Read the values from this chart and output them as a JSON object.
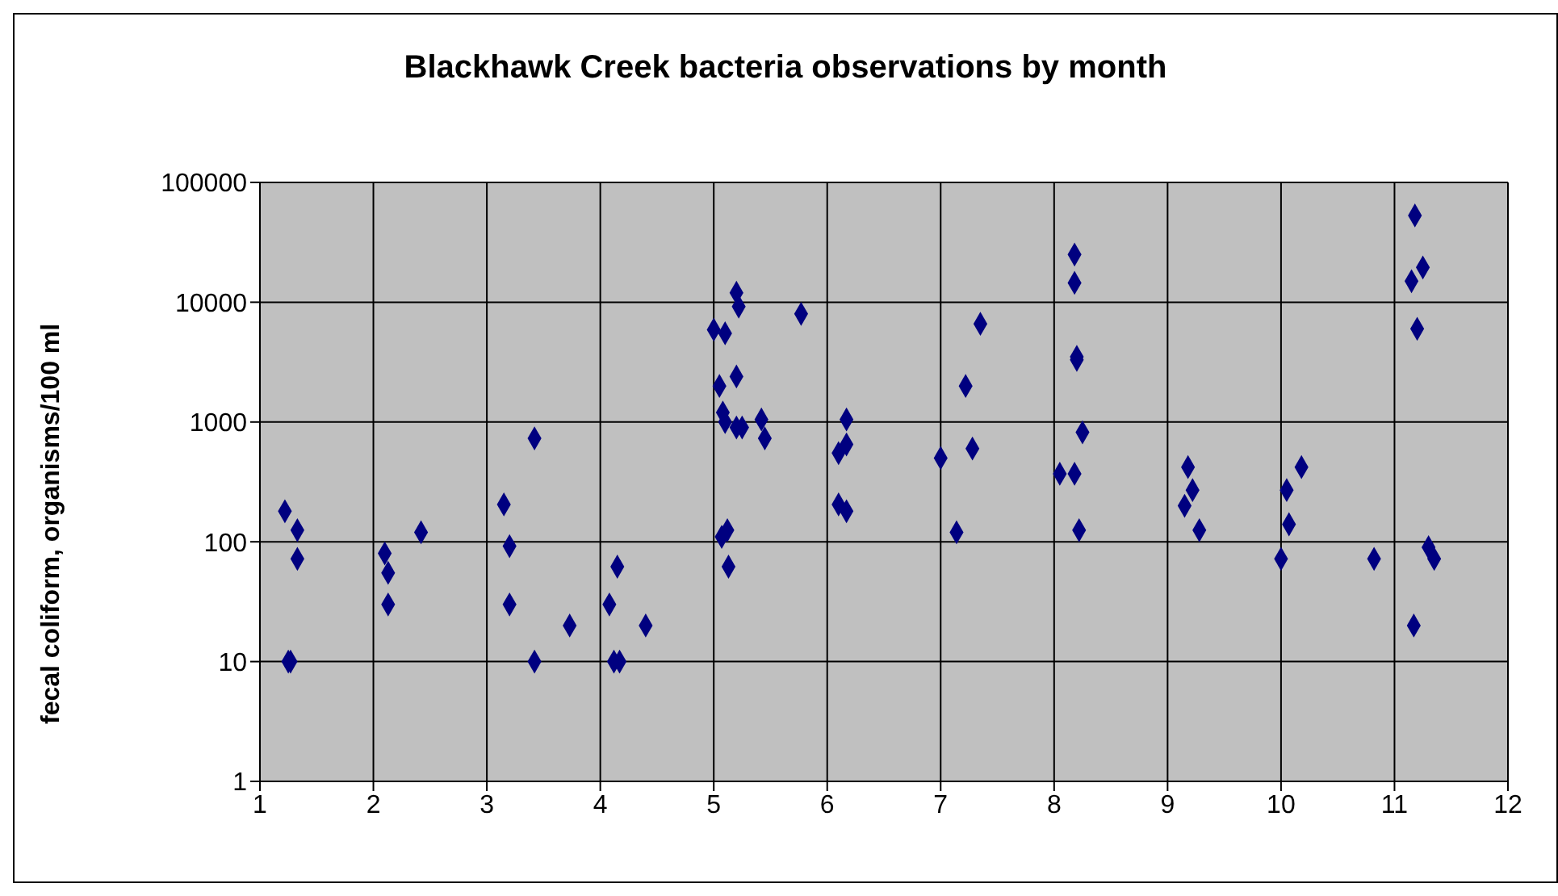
{
  "chart_data": {
    "type": "scatter",
    "title": "Blackhawk Creek bacteria observations by month",
    "ylabel": "fecal coliform, organisms/100 ml",
    "log": "y",
    "grid": true,
    "marker": "diamond",
    "xlim": [
      1,
      12
    ],
    "xticks": [
      1,
      2,
      3,
      4,
      5,
      6,
      7,
      8,
      9,
      10,
      11,
      12
    ],
    "ylim": [
      1,
      100000
    ],
    "yticks": [
      1,
      10,
      100,
      1000,
      10000,
      100000
    ],
    "series": [
      {
        "color": "#000080",
        "x": [
          1.22,
          1.25,
          1.27,
          1.33,
          1.33,
          2.1,
          2.13,
          2.13,
          2.42,
          3.15,
          3.2,
          3.2,
          3.42,
          3.42,
          3.73,
          4.08,
          4.12,
          4.17,
          4.15,
          4.4,
          5.0,
          5.05,
          5.1,
          5.08,
          5.1,
          5.07,
          5.12,
          5.13,
          5.2,
          5.22,
          5.2,
          5.2,
          5.25,
          5.42,
          5.45,
          5.77,
          6.1,
          6.17,
          6.17,
          6.1,
          6.17,
          7.0,
          7.14,
          7.22,
          7.28,
          7.35,
          8.05,
          8.18,
          8.18,
          8.18,
          8.2,
          8.2,
          8.25,
          8.22,
          9.15,
          9.18,
          9.22,
          9.28,
          10.0,
          10.05,
          10.07,
          10.18,
          10.82,
          11.15,
          11.18,
          11.2,
          11.25,
          11.17,
          11.3,
          11.35
        ],
        "values": [
          180,
          10,
          10,
          125,
          72,
          80,
          55,
          30,
          120,
          205,
          92,
          30,
          10,
          730,
          20,
          30,
          10,
          10,
          62,
          20,
          5900,
          2000,
          5500,
          1200,
          1000,
          110,
          125,
          62,
          12000,
          9200,
          2400,
          900,
          900,
          1050,
          730,
          8000,
          550,
          650,
          1050,
          205,
          180,
          500,
          120,
          2000,
          600,
          6600,
          370,
          370,
          25000,
          14500,
          3500,
          3300,
          820,
          125,
          200,
          420,
          270,
          125,
          72,
          270,
          140,
          420,
          72,
          15000,
          53000,
          6000,
          19500,
          20,
          90,
          72
        ]
      }
    ]
  }
}
